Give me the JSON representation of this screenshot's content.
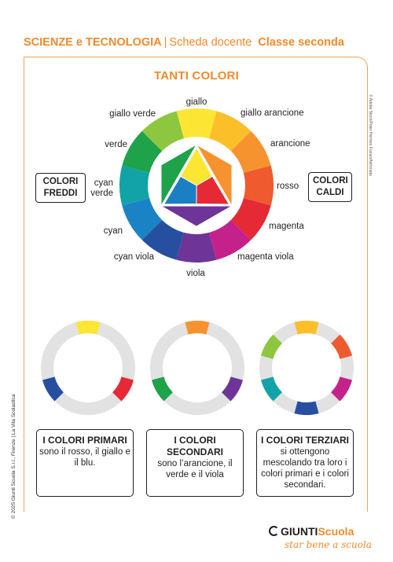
{
  "header": {
    "subject": "SCIENZE e TECNOLOGIA",
    "separator": "|",
    "sheet": "Scheda docente",
    "grade": "Classe seconda"
  },
  "title": "TANTI COLORI",
  "wheel": {
    "segments": [
      {
        "name": "giallo",
        "color": "#fde633"
      },
      {
        "name": "giallo arancione",
        "color": "#fbbf2a"
      },
      {
        "name": "arancione",
        "color": "#f7932f"
      },
      {
        "name": "rosso",
        "color": "#ef5a2e"
      },
      {
        "name": "magenta",
        "color": "#e52935"
      },
      {
        "name": "magenta viola",
        "color": "#c5218a"
      },
      {
        "name": "viola",
        "color": "#6e3498"
      },
      {
        "name": "cyan viola",
        "color": "#274f9f"
      },
      {
        "name": "cyan",
        "color": "#1a83c6"
      },
      {
        "name": "cyan verde",
        "color": "#12a3a9"
      },
      {
        "name": "verde",
        "color": "#1ea24a"
      },
      {
        "name": "giallo verde",
        "color": "#8dc63f"
      }
    ],
    "center": {
      "primary_yellow": "#fde633",
      "primary_red": "#e52935",
      "primary_blue": "#1b7fc3",
      "secondary_orange": "#f7932f",
      "secondary_green": "#1ea24a",
      "secondary_violet": "#6e3498"
    }
  },
  "tags": {
    "cold": "COLORI FREDDI",
    "warm": "COLORI CALDI"
  },
  "credits": {
    "image": "© Adobe Stock/Peter Hermes Furian/Astronata",
    "copyright": "© 2025 Giunti Scuola S.r.l., Firenze | La Vita Scolastica"
  },
  "small_wheels": [
    {
      "name": "primari",
      "colors": [
        "#fde633",
        "#e52935",
        "#274f9f"
      ]
    },
    {
      "name": "secondari",
      "colors": [
        "#f7932f",
        "#6e3498",
        "#1ea24a"
      ]
    },
    {
      "name": "terziari",
      "colors": [
        "#fbbf2a",
        "#ef5a2e",
        "#c5218a",
        "#274f9f",
        "#12a3a9",
        "#8dc63f"
      ]
    }
  ],
  "boxes": [
    {
      "title": "I COLORI PRIMARI",
      "text": "sono il rosso, il giallo e il blu."
    },
    {
      "title": "I COLORI SECONDARI",
      "text": "sono l’arancione, il verde e il viola"
    },
    {
      "title": "I COLORI TERZIARI",
      "text": "si ottengono mescolando tra loro i colori primari e i colori secondari."
    }
  ],
  "footer": {
    "brand_black": "GIUNTI",
    "brand_orange": "Scuola",
    "slogan": "star bene a scuola"
  },
  "colors": {
    "accent": "#f18a2c",
    "ring_gray": "#e2e2e2"
  }
}
